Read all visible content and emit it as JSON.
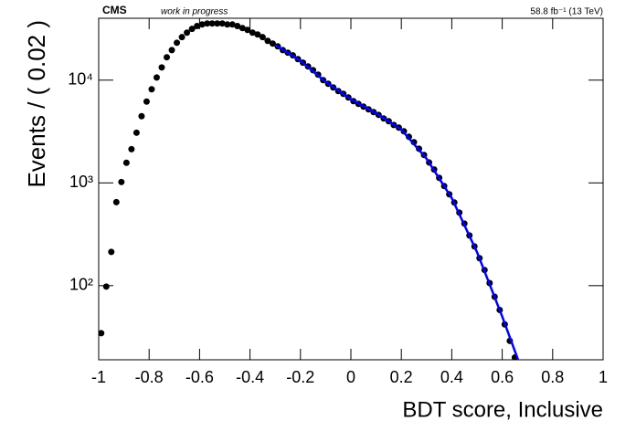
{
  "chart_data": {
    "type": "scatter",
    "header_left": "CMS",
    "header_note": "work in progress",
    "header_right": "58.8 fb⁻¹ (13 TeV)",
    "y_label": "Events / ( 0.02 )",
    "x_label": "BDT score, Inclusive",
    "xlim": [
      -1,
      1
    ],
    "xticks": [
      -1,
      -0.8,
      -0.6,
      -0.4,
      -0.2,
      0,
      0.2,
      0.4,
      0.6,
      0.8,
      1
    ],
    "ylim": [
      19,
      40000
    ],
    "log_y": true,
    "yticks": [
      {
        "value": 100,
        "label": "10²"
      },
      {
        "value": 1000,
        "label": "10³"
      },
      {
        "value": 10000,
        "label": "10⁴"
      }
    ],
    "grid": false,
    "series": [
      {
        "type": "scatter",
        "color": "#000000",
        "x": [
          -0.99,
          -0.97,
          -0.95,
          -0.93,
          -0.91,
          -0.89,
          -0.87,
          -0.85,
          -0.83,
          -0.81,
          -0.79,
          -0.77,
          -0.75,
          -0.73,
          -0.71,
          -0.69,
          -0.67,
          -0.65,
          -0.63,
          -0.61,
          -0.59,
          -0.57,
          -0.55,
          -0.53,
          -0.51,
          -0.49,
          -0.47,
          -0.45,
          -0.43,
          -0.41,
          -0.39,
          -0.37,
          -0.35,
          -0.33,
          -0.31,
          -0.29,
          -0.27,
          -0.25,
          -0.23,
          -0.21,
          -0.19,
          -0.17,
          -0.15,
          -0.13,
          -0.11,
          -0.09,
          -0.07,
          -0.05,
          -0.03,
          -0.01,
          0.01,
          0.03,
          0.05,
          0.07,
          0.09,
          0.11,
          0.13,
          0.15,
          0.17,
          0.19,
          0.21,
          0.23,
          0.25,
          0.27,
          0.29,
          0.31,
          0.33,
          0.35,
          0.37,
          0.39,
          0.41,
          0.43,
          0.45,
          0.47,
          0.49,
          0.51,
          0.53,
          0.55,
          0.57,
          0.59,
          0.61,
          0.63,
          0.65
        ],
        "values": [
          34.5,
          98,
          213,
          650,
          1020,
          1570,
          2130,
          3080,
          4460,
          6180,
          8150,
          10600,
          13300,
          16700,
          19600,
          23100,
          26200,
          29000,
          31500,
          33600,
          34800,
          35600,
          35600,
          35600,
          35600,
          34800,
          34800,
          33600,
          32100,
          30800,
          29000,
          27800,
          26200,
          24100,
          22700,
          21300,
          19600,
          18500,
          17400,
          16000,
          14800,
          13600,
          12500,
          11300,
          10000,
          9210,
          8490,
          7820,
          7360,
          6780,
          6250,
          5870,
          5520,
          5200,
          4890,
          4590,
          4240,
          3980,
          3660,
          3450,
          3180,
          2810,
          2490,
          2150,
          1870,
          1580,
          1350,
          1120,
          931,
          775,
          645,
          514,
          402,
          308,
          241,
          185,
          142,
          106,
          78,
          58,
          42,
          29,
          20
        ]
      },
      {
        "type": "line",
        "color": "#0000ff",
        "x": [
          -0.3,
          -0.2,
          -0.1,
          0,
          0.1,
          0.2,
          0.3,
          0.4,
          0.5,
          0.6,
          0.67
        ],
        "values": [
          21900,
          15400,
          9600,
          6500,
          4740,
          3300,
          1720,
          710,
          212,
          50,
          17
        ]
      }
    ]
  }
}
